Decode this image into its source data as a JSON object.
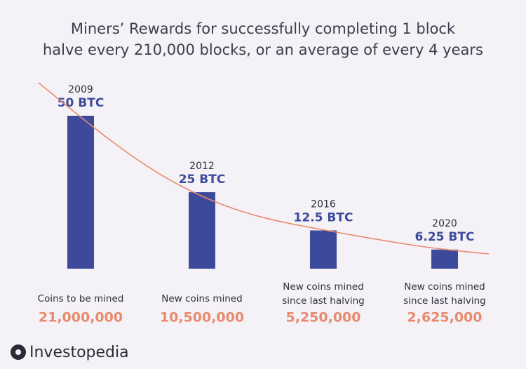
{
  "chart_data": {
    "type": "bar",
    "title": [
      "Miners’ Rewards for successfully completing 1 block",
      "halve every 210,000 blocks, or an average of every 4 years"
    ],
    "categories": [
      "2009",
      "2012",
      "2016",
      "2020"
    ],
    "values": [
      50,
      25,
      12.5,
      6.25
    ],
    "value_labels": [
      "50 BTC",
      "25 BTC",
      "12.5 BTC",
      "6.25 BTC"
    ],
    "color": "#3d4a9c",
    "descriptions": [
      [
        "Coins to be mined"
      ],
      [
        "New coins mined"
      ],
      [
        "New coins mined",
        "since last halving"
      ],
      [
        "New coins mined",
        "since last halving"
      ]
    ],
    "coins": [
      "21,000,000",
      "10,500,000",
      "5,250,000",
      "2,625,000"
    ]
  },
  "logo": "Investopedia"
}
